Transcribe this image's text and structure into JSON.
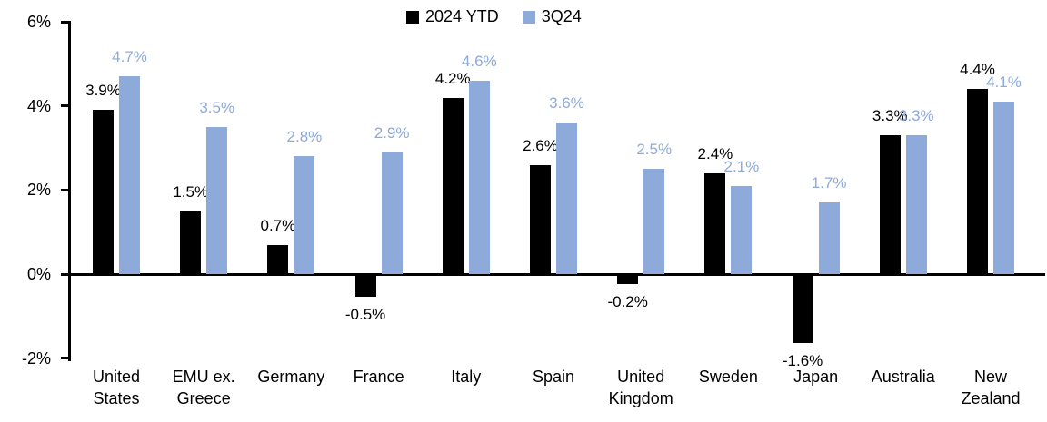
{
  "chart_data": {
    "type": "bar",
    "title": "",
    "categories": [
      "United States",
      "EMU ex. Greece",
      "Germany",
      "France",
      "Italy",
      "Spain",
      "United Kingdom",
      "Sweden",
      "Japan",
      "Australia",
      "New Zealand"
    ],
    "categories_display": [
      "United\nStates",
      "EMU ex.\nGreece",
      "Germany",
      "France",
      "Italy",
      "Spain",
      "United\nKingdom",
      "Sweden",
      "Japan",
      "Australia",
      "New\nZealand"
    ],
    "series": [
      {
        "name": "2024 YTD",
        "color": "#000000",
        "values": [
          3.9,
          1.5,
          0.7,
          -0.5,
          4.2,
          2.6,
          -0.2,
          2.4,
          -1.6,
          3.3,
          4.4
        ],
        "labels": [
          "3.9%",
          "1.5%",
          "0.7%",
          "-0.5%",
          "4.2%",
          "2.6%",
          "-0.2%",
          "2.4%",
          "-1.6%",
          "3.3%",
          "4.4%"
        ]
      },
      {
        "name": "3Q24",
        "color": "#8EAADB",
        "values": [
          4.7,
          3.5,
          2.8,
          2.9,
          4.6,
          3.6,
          2.5,
          2.1,
          1.7,
          3.3,
          4.1
        ],
        "labels": [
          "4.7%",
          "3.5%",
          "2.8%",
          "2.9%",
          "4.6%",
          "3.6%",
          "2.5%",
          "2.1%",
          "1.7%",
          "3.3%",
          "4.1%"
        ]
      }
    ],
    "y_axis": {
      "unit": "%",
      "min": -2,
      "max": 6,
      "tick_values": [
        6,
        4,
        2,
        0,
        -2
      ],
      "tick_labels": [
        "6%",
        "4%",
        "2%",
        "0%",
        "-2%"
      ]
    },
    "grid": false,
    "legend_position": "top-center",
    "value_labels_shown": true
  }
}
